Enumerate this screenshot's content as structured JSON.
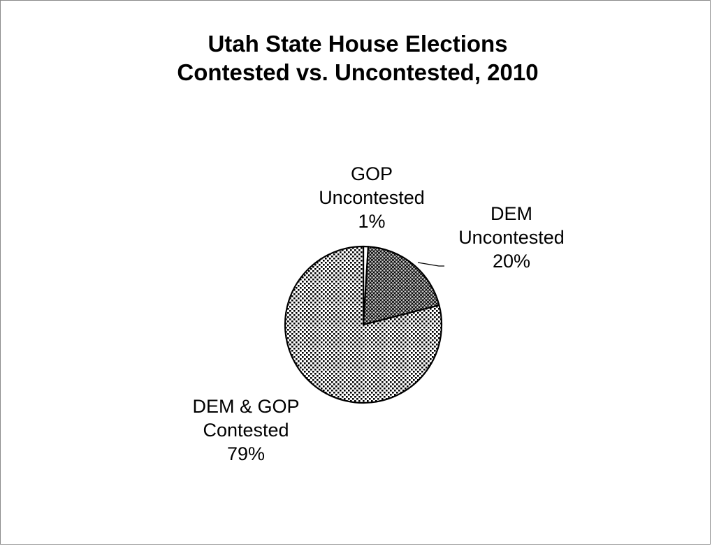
{
  "chart_data": {
    "type": "pie",
    "title": "Utah State House Elections",
    "subtitle": "Contested vs. Uncontested, 2010",
    "start_angle_deg": 0,
    "direction": "clockwise",
    "slices": [
      {
        "category_line1": "GOP",
        "category_line2": "Uncontested",
        "value": 1,
        "value_label": "1%",
        "pattern": "white"
      },
      {
        "category_line1": "DEM",
        "category_line2": "Uncontested",
        "value": 20,
        "value_label": "20%",
        "pattern": "crosshatch"
      },
      {
        "category_line1": "DEM & GOP",
        "category_line2": "Contested",
        "value": 79,
        "value_label": "79%",
        "pattern": "dots"
      }
    ],
    "legend": "none"
  }
}
